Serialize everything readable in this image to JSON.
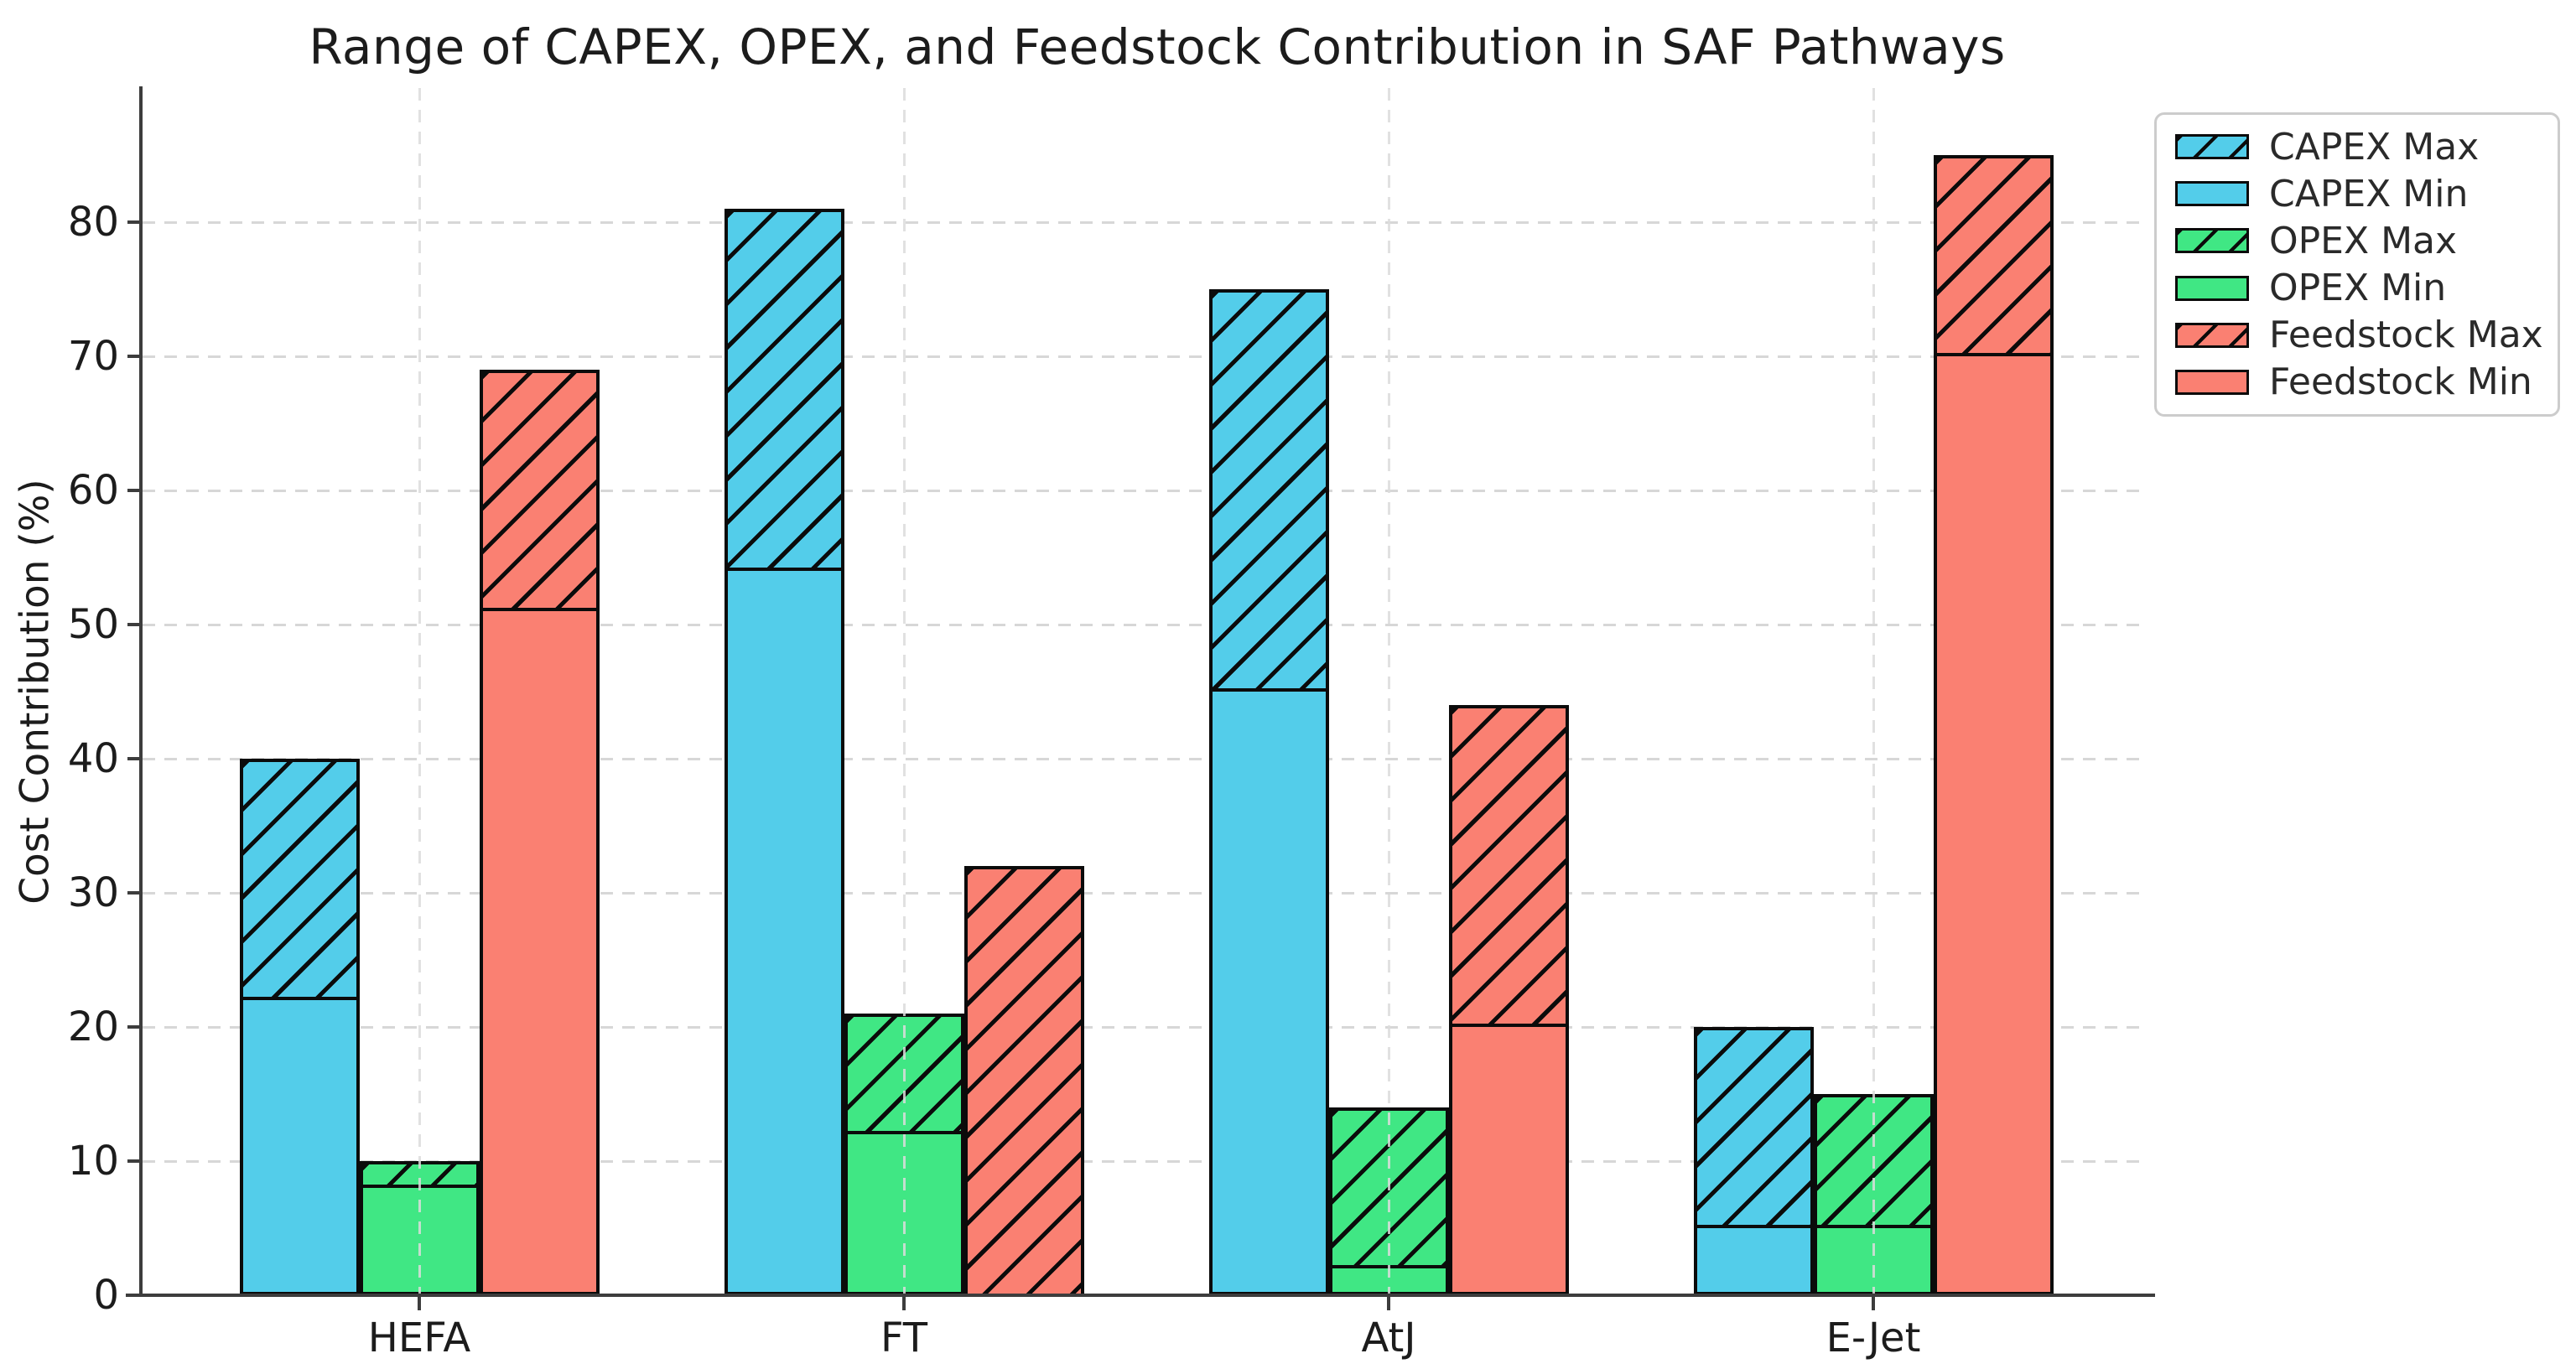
{
  "title": "Range of CAPEX, OPEX, and Feedstock Contribution in SAF Pathways",
  "y_axis": {
    "label": "Cost Contribution (%)",
    "ticks": [
      0,
      10,
      20,
      30,
      40,
      50,
      60,
      70,
      80
    ],
    "max_value": 90
  },
  "x_axis": {
    "categories": [
      "HEFA",
      "FT",
      "AtJ",
      "E-Jet"
    ]
  },
  "colors": {
    "capex": "#53CDEA",
    "opex": "#40E784",
    "feedstock": "#FA8072",
    "bar_edge": "#0b0b0b",
    "grid": "#d7d7d7",
    "spine": "#3d3d3d",
    "text": "#1c1c1c"
  },
  "legend": {
    "items": [
      {
        "label": "CAPEX Max",
        "series": "capex",
        "hatched": true
      },
      {
        "label": "CAPEX Min",
        "series": "capex",
        "hatched": false
      },
      {
        "label": "OPEX Max",
        "series": "opex",
        "hatched": true
      },
      {
        "label": "OPEX Min",
        "series": "opex",
        "hatched": false
      },
      {
        "label": "Feedstock Max",
        "series": "feedstock",
        "hatched": true
      },
      {
        "label": "Feedstock Min",
        "series": "feedstock",
        "hatched": false
      }
    ]
  },
  "chart_data": {
    "type": "bar",
    "title": "Range of CAPEX, OPEX, and Feedstock Contribution in SAF Pathways",
    "xlabel": "",
    "ylabel": "Cost Contribution (%)",
    "ylim": [
      0,
      90
    ],
    "grid": true,
    "legend_position": "upper right, outside plot",
    "categories": [
      "HEFA",
      "FT",
      "AtJ",
      "E-Jet"
    ],
    "series": [
      {
        "name": "CAPEX",
        "key": "capex",
        "min": [
          22,
          54,
          45,
          5
        ],
        "max": [
          40,
          81,
          75,
          20
        ]
      },
      {
        "name": "OPEX",
        "key": "opex",
        "min": [
          8,
          12,
          2,
          5
        ],
        "max": [
          10,
          21,
          14,
          15
        ]
      },
      {
        "name": "Feedstock",
        "key": "feedstock",
        "min": [
          51,
          0,
          20,
          70
        ],
        "max": [
          69,
          32,
          44,
          85
        ]
      }
    ],
    "note_encoding": "solid fill = Min value; hatched segment extends from Min up to Max"
  }
}
